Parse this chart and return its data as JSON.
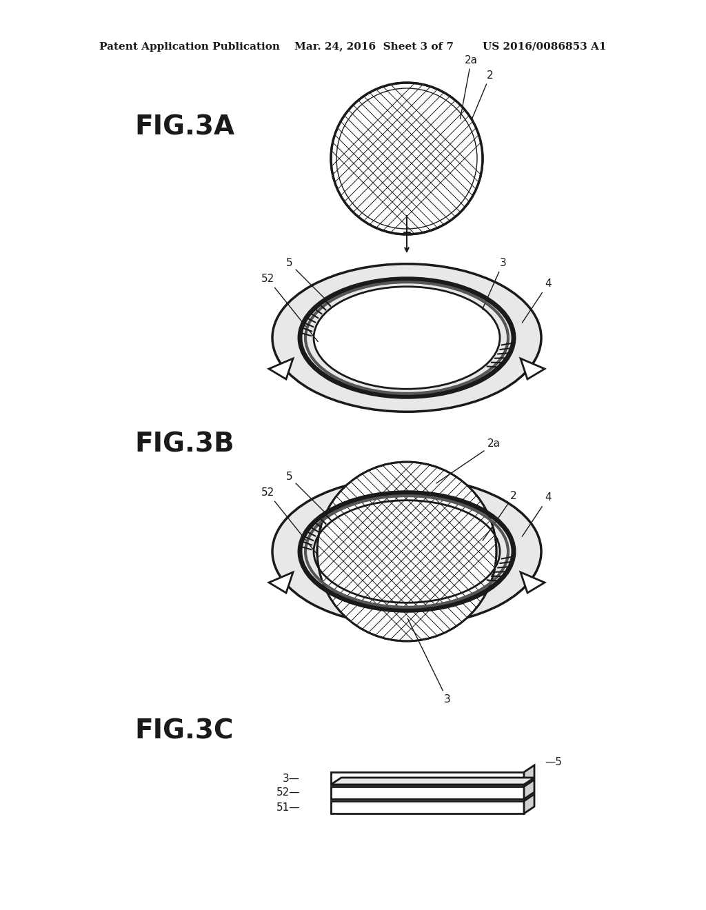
{
  "background_color": "#ffffff",
  "header_text": "Patent Application Publication    Mar. 24, 2016  Sheet 3 of 7        US 2016/0086853 A1",
  "fig3a_label": "FIG.3A",
  "fig3b_label": "FIG.3B",
  "fig3c_label": "FIG.3C",
  "line_color": "#1a1a1a",
  "text_color": "#1a1a1a",
  "label_fontsize": 28,
  "header_fontsize": 11,
  "ref_fontsize": 11
}
